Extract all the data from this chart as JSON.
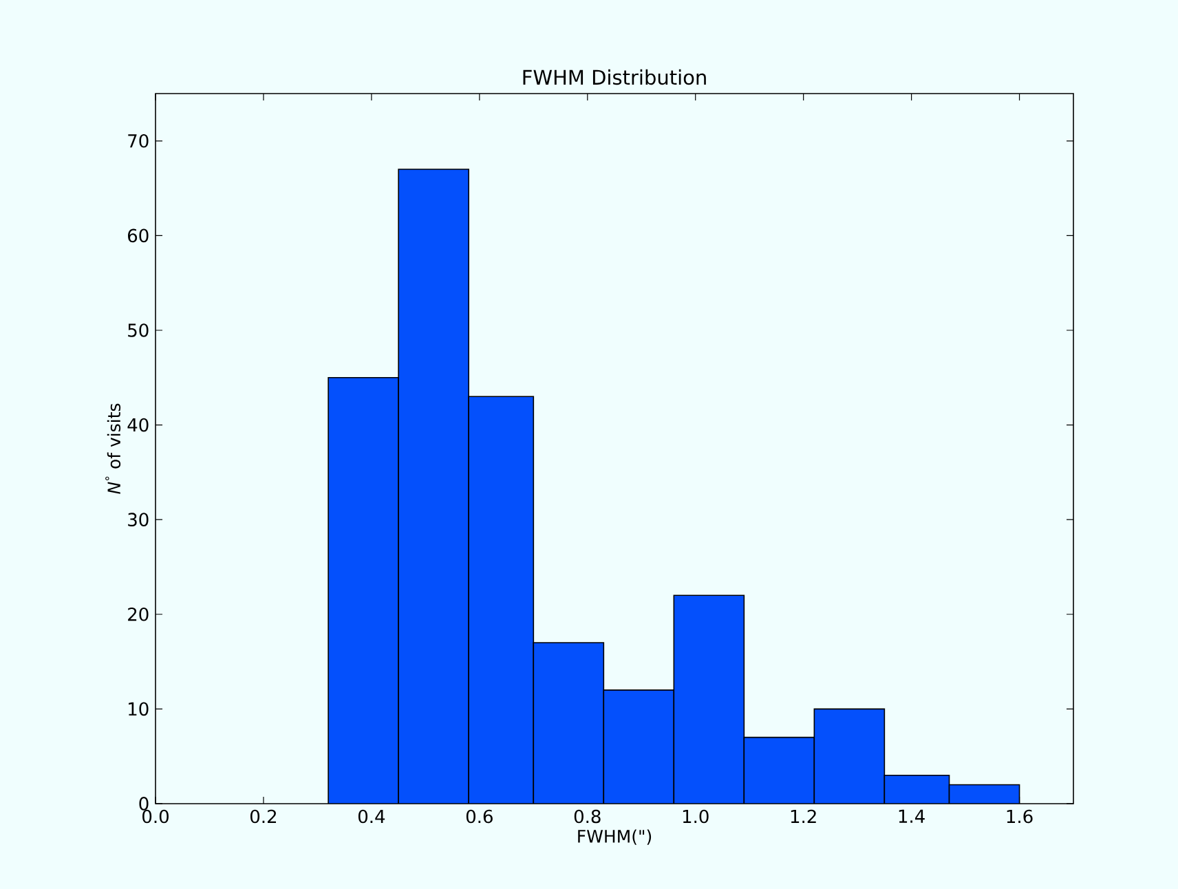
{
  "chart_data": {
    "type": "histogram",
    "title": "FWHM Distribution",
    "xlabel": "FWHM(\")",
    "ylabel": "*N*$^{°}$ of visits",
    "bins": [
      0.32,
      0.45,
      0.58,
      0.7,
      0.83,
      0.96,
      1.09,
      1.22,
      1.35,
      1.47,
      1.6
    ],
    "values": [
      45,
      67,
      43,
      17,
      12,
      22,
      7,
      10,
      3,
      2
    ],
    "color": "#0450fc",
    "xlim": [
      0,
      1.7
    ],
    "xticks": [
      {
        "value": 0,
        "label": "0.0"
      },
      0.2,
      0.4,
      0.6,
      0.8,
      {
        "value": 1,
        "label": "1.0"
      },
      1.2,
      1.4,
      1.6
    ],
    "ylim": [
      0,
      75
    ],
    "yticks": [
      0,
      10,
      20,
      30,
      40,
      50,
      60,
      70
    ]
  }
}
